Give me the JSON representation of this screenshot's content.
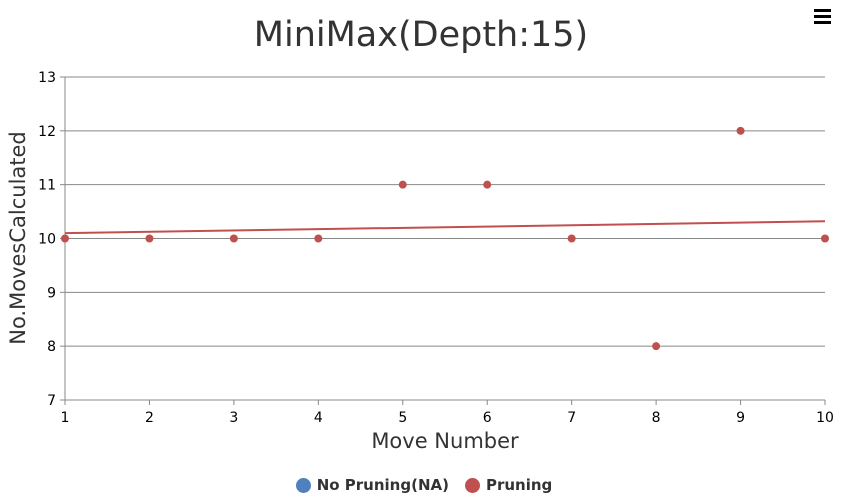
{
  "chart_data": {
    "type": "scatter",
    "title": "MiniMax(Depth:15)",
    "xlabel": "Move Number",
    "ylabel": "No.MovesCalculated",
    "xlim": [
      1,
      10
    ],
    "ylim": [
      7,
      13
    ],
    "x_ticks": [
      "1",
      "2",
      "3",
      "4",
      "5",
      "6",
      "7",
      "8",
      "9",
      "10"
    ],
    "y_ticks": [
      "7",
      "8",
      "9",
      "10",
      "11",
      "12",
      "13"
    ],
    "grid": "horizontal",
    "legend_position": "bottom",
    "series": [
      {
        "name": "No Pruning(NA)",
        "color": "#4f81bc",
        "x": [],
        "y": []
      },
      {
        "name": "Pruning",
        "color": "#c0504e",
        "x": [
          1,
          2,
          3,
          4,
          5,
          6,
          7,
          8,
          9,
          10
        ],
        "y": [
          10,
          10,
          10,
          10,
          11,
          11,
          10,
          8,
          12,
          10
        ],
        "trendline": {
          "start": [
            1,
            10.1
          ],
          "end": [
            10,
            10.32
          ]
        }
      }
    ]
  },
  "menu_icon": "hamburger-menu-icon"
}
